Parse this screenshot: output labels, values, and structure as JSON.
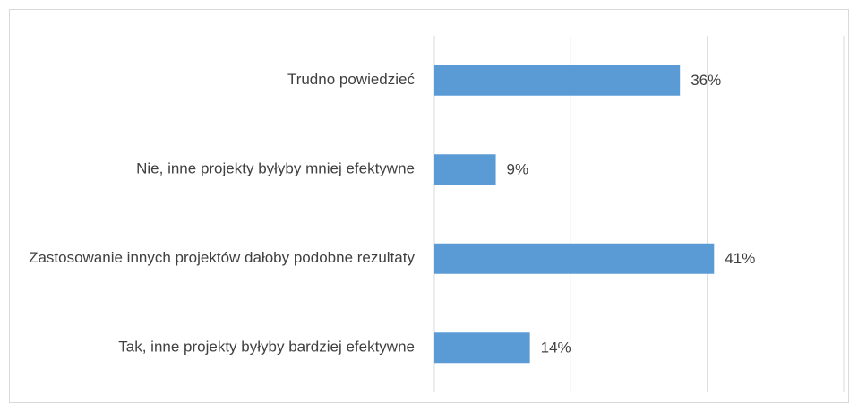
{
  "chart_data": {
    "type": "bar",
    "orientation": "horizontal",
    "categories": [
      "Trudno powiedzieć",
      "Nie, inne projekty byłyby mniej efektywne",
      "Zastosowanie innych projektów dałoby podobne rezultaty",
      "Tak, inne projekty byłyby bardziej efektywne"
    ],
    "values": [
      36,
      9,
      41,
      14
    ],
    "value_labels": [
      "36%",
      "9%",
      "41%",
      "14%"
    ],
    "color": "#5b9bd5",
    "xlim": [
      0,
      60
    ],
    "xticks": [
      0,
      20,
      40,
      60
    ],
    "grid": true
  }
}
